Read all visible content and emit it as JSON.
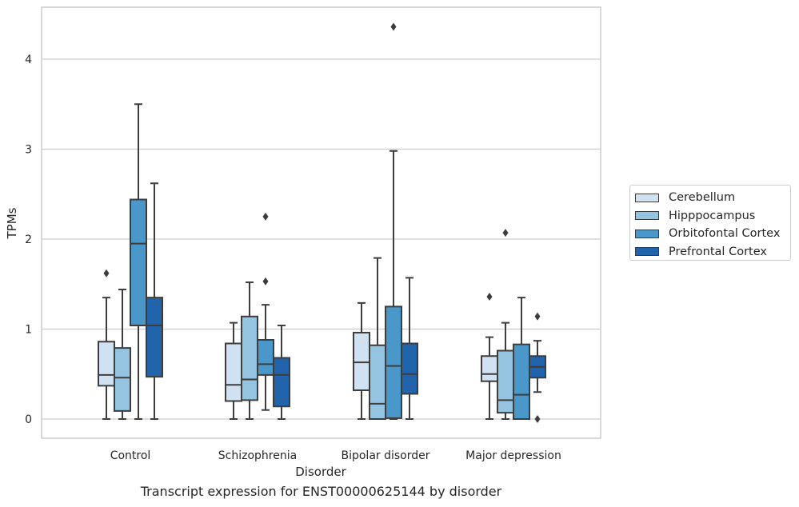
{
  "chart_data": {
    "type": "box",
    "title": "Transcript expression for ENST00000625144 by disorder",
    "xlabel": "Disorder",
    "ylabel": "TPMs",
    "ylim": [
      -0.2,
      4.6
    ],
    "yticks": [
      0,
      1,
      2,
      3,
      4
    ],
    "grid": "horizontal",
    "legend_position": "right",
    "categories": [
      "Control",
      "Schizophrenia",
      "Bipolar disorder",
      "Major depression"
    ],
    "series": [
      {
        "name": "Cerebellum",
        "color": "#d0e1f2",
        "boxes": [
          {
            "q1": 0.37,
            "median": 0.49,
            "q3": 0.86,
            "whisker_low": 0.0,
            "whisker_high": 1.35,
            "outliers": [
              1.62
            ]
          },
          {
            "q1": 0.2,
            "median": 0.38,
            "q3": 0.84,
            "whisker_low": 0.0,
            "whisker_high": 1.07,
            "outliers": []
          },
          {
            "q1": 0.32,
            "median": 0.63,
            "q3": 0.96,
            "whisker_low": 0.0,
            "whisker_high": 1.29,
            "outliers": []
          },
          {
            "q1": 0.42,
            "median": 0.5,
            "q3": 0.7,
            "whisker_low": 0.0,
            "whisker_high": 0.91,
            "outliers": [
              1.36
            ]
          }
        ]
      },
      {
        "name": "Hipppocampus",
        "color": "#94c4df",
        "boxes": [
          {
            "q1": 0.09,
            "median": 0.46,
            "q3": 0.79,
            "whisker_low": 0.0,
            "whisker_high": 1.44,
            "outliers": []
          },
          {
            "q1": 0.21,
            "median": 0.44,
            "q3": 1.14,
            "whisker_low": 0.0,
            "whisker_high": 1.52,
            "outliers": []
          },
          {
            "q1": 0.0,
            "median": 0.17,
            "q3": 0.82,
            "whisker_low": 0.0,
            "whisker_high": 1.79,
            "outliers": []
          },
          {
            "q1": 0.07,
            "median": 0.21,
            "q3": 0.76,
            "whisker_low": 0.0,
            "whisker_high": 1.07,
            "outliers": [
              2.07
            ]
          }
        ]
      },
      {
        "name": "Orbitofontal Cortex",
        "color": "#4a98c9",
        "boxes": [
          {
            "q1": 1.04,
            "median": 1.95,
            "q3": 2.44,
            "whisker_low": 0.0,
            "whisker_high": 3.5,
            "outliers": []
          },
          {
            "q1": 0.49,
            "median": 0.61,
            "q3": 0.88,
            "whisker_low": 0.1,
            "whisker_high": 1.27,
            "outliers": [
              1.53,
              2.25
            ]
          },
          {
            "q1": 0.01,
            "median": 0.59,
            "q3": 1.25,
            "whisker_low": 0.0,
            "whisker_high": 2.98,
            "outliers": [
              4.36
            ]
          },
          {
            "q1": 0.0,
            "median": 0.27,
            "q3": 0.83,
            "whisker_low": 0.0,
            "whisker_high": 1.35,
            "outliers": []
          }
        ]
      },
      {
        "name": "Prefrontal Cortex",
        "color": "#2164ab",
        "boxes": [
          {
            "q1": 0.47,
            "median": 1.04,
            "q3": 1.35,
            "whisker_low": 0.0,
            "whisker_high": 2.62,
            "outliers": []
          },
          {
            "q1": 0.14,
            "median": 0.49,
            "q3": 0.68,
            "whisker_low": 0.0,
            "whisker_high": 1.04,
            "outliers": []
          },
          {
            "q1": 0.28,
            "median": 0.5,
            "q3": 0.84,
            "whisker_low": 0.0,
            "whisker_high": 1.57,
            "outliers": []
          },
          {
            "q1": 0.46,
            "median": 0.58,
            "q3": 0.7,
            "whisker_low": 0.3,
            "whisker_high": 0.87,
            "outliers": [
              0.0,
              1.14
            ]
          }
        ]
      }
    ]
  }
}
